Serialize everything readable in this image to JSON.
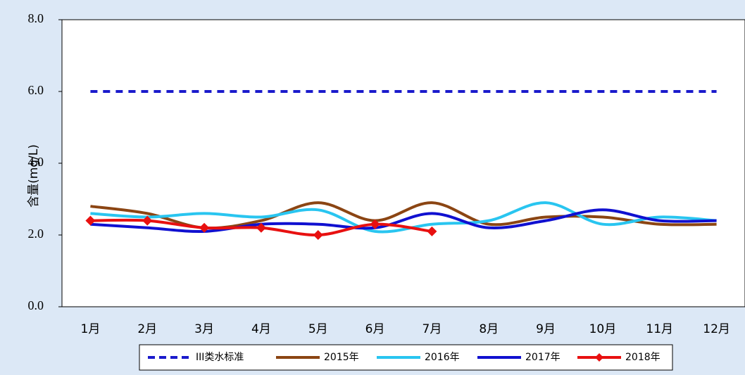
{
  "chart_data": {
    "type": "line",
    "y_label": "含量(mg/L)",
    "categories": [
      "1月",
      "2月",
      "3月",
      "4月",
      "5月",
      "6月",
      "7月",
      "8月",
      "9月",
      "10月",
      "11月",
      "12月"
    ],
    "ylim": [
      0,
      8
    ],
    "yticks": [
      {
        "value": 0,
        "label": "0.0"
      },
      {
        "value": 2,
        "label": "2.0"
      },
      {
        "value": 4,
        "label": "4.0"
      },
      {
        "value": 6,
        "label": "6.0"
      },
      {
        "value": 8,
        "label": "8.0"
      }
    ],
    "series": [
      {
        "name": "III类水标准",
        "color": "#1a1acc",
        "dashed": true,
        "values": [
          6,
          6,
          6,
          6,
          6,
          6,
          6,
          6,
          6,
          6,
          6,
          6
        ]
      },
      {
        "name": "2015年",
        "color": "#8b4513",
        "values": [
          2.8,
          2.6,
          2.2,
          2.4,
          2.9,
          2.4,
          2.9,
          2.3,
          2.5,
          2.5,
          2.3,
          2.3
        ]
      },
      {
        "name": "2016年",
        "color": "#29c5f0",
        "values": [
          2.6,
          2.5,
          2.6,
          2.5,
          2.7,
          2.1,
          2.3,
          2.4,
          2.9,
          2.3,
          2.5,
          2.4
        ]
      },
      {
        "name": "2017年",
        "color": "#1010d0",
        "values": [
          2.3,
          2.2,
          2.1,
          2.3,
          2.3,
          2.2,
          2.6,
          2.2,
          2.4,
          2.7,
          2.4,
          2.4
        ]
      },
      {
        "name": "2018年",
        "color": "#e81010",
        "markers": true,
        "values": [
          2.4,
          2.4,
          2.2,
          2.2,
          2.0,
          2.3,
          2.1,
          null,
          null,
          null,
          null,
          null
        ]
      }
    ]
  }
}
